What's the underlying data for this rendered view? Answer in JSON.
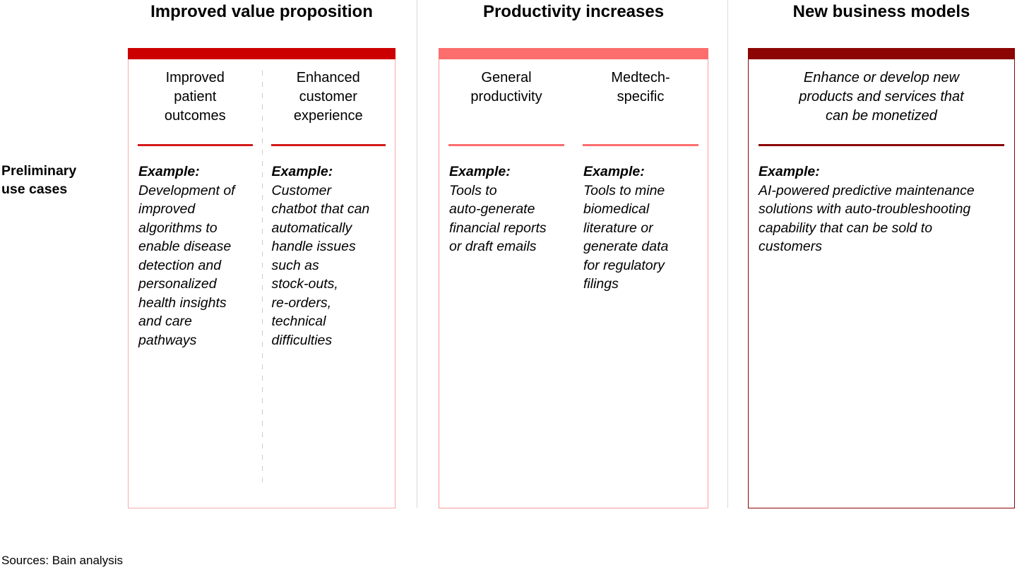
{
  "page": {
    "row_label": "Preliminary\nuse cases",
    "sources": "Sources: Bain analysis"
  },
  "colors": {
    "separator": "#d9d9d9",
    "dashed_divider": "#cccccc"
  },
  "columns": [
    {
      "title": "Improved value proposition",
      "theme": {
        "bar": "#cc0000",
        "border": "#f7abab",
        "underline": "#d31a1a"
      },
      "subcolumns": [
        {
          "header": "Improved\npatient\noutcomes",
          "example_label": "Example:",
          "example_text": "Development of\nimproved\nalgorithms to\nenable disease\ndetection and\npersonalized\nhealth insights\nand care\npathways"
        },
        {
          "header": "Enhanced\ncustomer\nexperience",
          "example_label": "Example:",
          "example_text": "Customer\nchatbot that can\nautomatically\nhandle issues\nsuch as\nstock-outs,\nre-orders,\ntechnical\ndifficulties"
        }
      ]
    },
    {
      "title": "Productivity increases",
      "theme": {
        "bar": "#fc6d6d",
        "border": "#fc9b9b",
        "underline": "#fc6d6d"
      },
      "subcolumns": [
        {
          "header": "General\nproductivity",
          "example_label": "Example:",
          "example_text": "Tools to\nauto-generate\nfinancial reports\nor draft emails"
        },
        {
          "header": "Medtech-\nspecific",
          "example_label": "Example:",
          "example_text": "Tools to mine\nbiomedical\nliterature or\ngenerate data\nfor regulatory\nfilings"
        }
      ]
    },
    {
      "title": "New business models",
      "theme": {
        "bar": "#8c0404",
        "border": "#8c0404",
        "underline": "#8c0404"
      },
      "subcolumns": [
        {
          "header": "Enhance or develop new\nproducts and services that\ncan be monetized",
          "example_label": "Example:",
          "example_text": "AI-powered predictive maintenance\nsolutions with auto-troubleshooting\ncapability that can be sold to\ncustomers"
        }
      ]
    }
  ]
}
